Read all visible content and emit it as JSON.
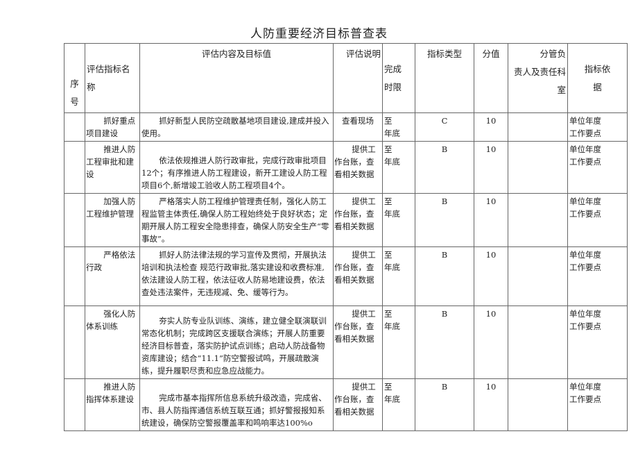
{
  "title": "人防重要经济目标普查表",
  "headers": {
    "seq": "序\n号",
    "name": "评估指标名\n称",
    "content": "评估内容及目标值",
    "desc": "评估说明",
    "deadline": "完成\n时限",
    "type": "指标类型",
    "score": "分值",
    "dept": "分管负\n责人及责任科\n室",
    "basis": "指标依\n据"
  },
  "rows": [
    {
      "seq": "",
      "name": "抓好重点项目建设",
      "content": "抓好新型人民防空疏散基地项目建设,建成并投入使用。",
      "desc": "查看现场",
      "deadline": "至\n年底",
      "type": "C",
      "score": "10",
      "dept": "",
      "basis": "单位年度\n工作要点"
    },
    {
      "seq": "",
      "name": "推进人防工程审批和建设",
      "content": "依法依规推进人防行政审批，完成行政审批项目12个；有序推进人防工程建设，新开工建设人防工程项目6个,新增竣工验收人防工程项目4个。",
      "desc": "提供工作台账，查看相关数据",
      "deadline": "至\n年底",
      "type": "B",
      "score": "10",
      "dept": "",
      "basis": "单位年度\n工作要点"
    },
    {
      "seq": "",
      "name": "加强人防工程维护管理",
      "content": "严格落实人防工程维护管理责任制，强化人防工程监管主体责任,确保人防工程始终处于良好状态；定期开展人防工程安全隐患排查，确保人防安全生产“零事故”。",
      "desc": "提供工作台账，查看相关数据",
      "deadline": "至\n年底",
      "type": "B",
      "score": "10",
      "dept": "",
      "basis": "单位年度\n工作要点"
    },
    {
      "seq": "",
      "name": "严格依法行政",
      "content": "抓好人防法律法规的学习宣传及贯彻，开展执法培训和执法检查 规范行政审批,落实建设和收费标准,依法建设人防工程，依法征收人防易地建设费，依法查处违法案件，无违规减、免、缓等行为。",
      "desc": "提供工作台账，查看相关数据",
      "deadline": "至\n年底",
      "type": "B",
      "score": "10",
      "dept": "",
      "basis": "单位年度\n工作要点"
    },
    {
      "seq": "",
      "name": "强化人防体系训练",
      "content": "夯实人防专业队训练、演练，建立健全联演联训常态化机制；完成跨区支援联合演练；开展人防重要经济目标普查，落实防护试点训练；启动人防战备物资库建设；结合“11.1”防空警报试鸣，开展疏散演练，提升履职尽责和应急应战能力。",
      "desc": "提供工作台账，查看相关数据",
      "deadline": "至\n年底",
      "type": "B",
      "score": "10",
      "dept": "",
      "basis": "单位年度\n工作要点"
    },
    {
      "seq": "",
      "name": "推进人防指挥体系建设",
      "content": "完成市基本指挥所信息系统升级改造，完成省、市、县人防指挥通信系统互联互通；抓好警报报知系统建设，确保防空警报覆盖率和鸣响率达100%o",
      "desc": "提供工作台账，查看相关数据",
      "deadline": "至\n年底",
      "type": "B",
      "score": "10",
      "dept": "",
      "basis": "单位年度\n工作要点"
    }
  ]
}
